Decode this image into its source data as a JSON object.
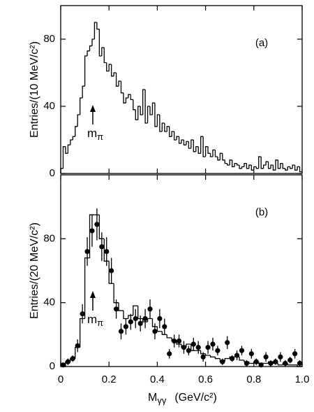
{
  "chart_data": [
    {
      "type": "histogram",
      "panel_label": "(a)",
      "ylabel": "Entries/(10 MeV/c²)",
      "annotation": {
        "text": "m",
        "subscript": "π"
      },
      "bins": [
        0,
        0.01,
        0.02,
        0.03,
        0.04,
        0.05,
        0.06,
        0.07,
        0.08,
        0.09,
        0.1,
        0.11,
        0.12,
        0.13,
        0.14,
        0.15,
        0.16,
        0.17,
        0.18,
        0.19,
        0.2,
        0.21,
        0.22,
        0.23,
        0.24,
        0.25,
        0.26,
        0.27,
        0.28,
        0.29,
        0.3,
        0.31,
        0.32,
        0.33,
        0.34,
        0.35,
        0.36,
        0.37,
        0.38,
        0.39,
        0.4,
        0.41,
        0.42,
        0.43,
        0.44,
        0.45,
        0.46,
        0.47,
        0.48,
        0.49,
        0.5,
        0.51,
        0.52,
        0.53,
        0.54,
        0.55,
        0.56,
        0.57,
        0.58,
        0.59,
        0.6,
        0.61,
        0.62,
        0.63,
        0.64,
        0.65,
        0.66,
        0.67,
        0.68,
        0.69,
        0.7,
        0.71,
        0.72,
        0.73,
        0.74,
        0.75,
        0.76,
        0.77,
        0.78,
        0.79,
        0.8,
        0.81,
        0.82,
        0.83,
        0.84,
        0.85,
        0.86,
        0.87,
        0.88,
        0.89,
        0.9,
        0.91,
        0.92,
        0.93,
        0.94,
        0.95,
        0.96,
        0.97,
        0.98,
        0.99,
        1
      ],
      "values": [
        3,
        16,
        12,
        17,
        20,
        22,
        28,
        35,
        45,
        52,
        70,
        73,
        76,
        80,
        90,
        86,
        70,
        75,
        66,
        61,
        65,
        58,
        60,
        52,
        55,
        48,
        42,
        45,
        47,
        44,
        38,
        32,
        40,
        35,
        50,
        30,
        40,
        35,
        42,
        28,
        35,
        25,
        30,
        25,
        28,
        22,
        25,
        20,
        22,
        18,
        20,
        17,
        19,
        15,
        20,
        13,
        16,
        12,
        22,
        10,
        16,
        12,
        10,
        14,
        10,
        8,
        12,
        8,
        6,
        5,
        8,
        4,
        6,
        5,
        3,
        4,
        6,
        3,
        5,
        2,
        4,
        3,
        10,
        3,
        5,
        7,
        3,
        5,
        2,
        8,
        3,
        6,
        3,
        2,
        4,
        3,
        5,
        2,
        4,
        1
      ],
      "xlim": [
        0,
        1
      ],
      "ylim": [
        0,
        100
      ],
      "yticks": [
        0,
        40,
        80
      ],
      "color": "#000000"
    },
    {
      "type": "histogram",
      "panel_label": "(b)",
      "ylabel": "Entries/(20 MeV/c²)",
      "annotation": {
        "text": "m",
        "subscript": "π"
      },
      "xlabel": {
        "text": "M",
        "subscript": "γγ",
        "unit": "(GeV/c²)"
      },
      "bins": [
        0,
        0.02,
        0.04,
        0.06,
        0.08,
        0.1,
        0.12,
        0.14,
        0.16,
        0.18,
        0.2,
        0.22,
        0.24,
        0.26,
        0.28,
        0.3,
        0.32,
        0.34,
        0.36,
        0.38,
        0.4,
        0.42,
        0.44,
        0.46,
        0.48,
        0.5,
        0.52,
        0.54,
        0.56,
        0.58,
        0.6,
        0.62,
        0.64,
        0.66,
        0.68,
        0.7,
        0.72,
        0.74,
        0.76,
        0.78,
        0.8,
        0.82,
        0.84,
        0.86,
        0.88,
        0.9,
        0.92,
        0.94,
        0.96,
        0.98,
        1
      ],
      "values": [
        0,
        3,
        5,
        12,
        30,
        68,
        95,
        95,
        80,
        66,
        52,
        40,
        35,
        30,
        32,
        38,
        30,
        28,
        30,
        25,
        22,
        20,
        18,
        16,
        14,
        12,
        14,
        10,
        10,
        8,
        7,
        6,
        5,
        3,
        5,
        6,
        6,
        4,
        3,
        2,
        3,
        2,
        2,
        3,
        2,
        1,
        2,
        1,
        1,
        0
      ],
      "points": {
        "values": [
          1,
          3,
          5,
          13,
          33,
          72,
          85,
          89,
          75,
          72,
          60,
          36,
          22,
          25,
          28,
          30,
          27,
          30,
          36,
          22,
          30,
          25,
          8,
          16,
          16,
          12,
          10,
          14,
          12,
          6,
          12,
          14,
          10,
          3,
          15,
          5,
          7,
          10,
          2,
          8,
          3,
          1,
          6,
          2,
          3,
          6,
          2,
          4,
          8,
          2
        ],
        "errors": [
          1,
          2,
          2,
          4,
          6,
          9,
          10,
          10,
          9,
          9,
          8,
          6,
          5,
          5,
          5,
          6,
          5,
          6,
          6,
          5,
          6,
          5,
          3,
          4,
          4,
          4,
          3,
          4,
          4,
          3,
          4,
          4,
          3,
          2,
          4,
          2,
          3,
          3,
          2,
          3,
          2,
          1,
          3,
          2,
          2,
          3,
          2,
          2,
          3,
          2
        ]
      },
      "xlim": [
        0,
        1
      ],
      "xticks": [
        0,
        0.2,
        0.4,
        0.6,
        0.8,
        {
          "value": 1,
          "label": "1.0"
        }
      ],
      "ylim": [
        0,
        120
      ],
      "yticks": [
        0,
        40,
        80
      ],
      "color": "#000000"
    }
  ]
}
